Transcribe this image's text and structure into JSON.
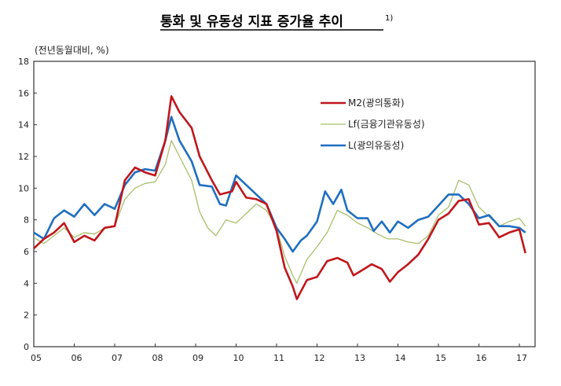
{
  "chart_data": {
    "type": "line",
    "title": "통화 및 유동성 지표 증가율 추이",
    "title_footnote": "1)",
    "ylabel": "(전년동월대비, %)",
    "xlabel": "",
    "xlim": [
      2005,
      2017.3
    ],
    "ylim": [
      0,
      18
    ],
    "yticks": [
      0,
      2,
      4,
      6,
      8,
      10,
      12,
      14,
      16,
      18
    ],
    "xtick_labels": [
      "05",
      "06",
      "07",
      "08",
      "09",
      "10",
      "11",
      "12",
      "13",
      "14",
      "15",
      "16",
      "17"
    ],
    "grid": false,
    "legend_placement": "top-right",
    "series": [
      {
        "name": "M2(광의통화)",
        "color": "#c0161c",
        "x": [
          2005,
          2005.25,
          2005.5,
          2005.75,
          2006,
          2006.25,
          2006.5,
          2006.75,
          2007,
          2007.25,
          2007.5,
          2007.75,
          2008,
          2008.25,
          2008.4,
          2008.6,
          2008.9,
          2009.1,
          2009.4,
          2009.6,
          2009.9,
          2010,
          2010.25,
          2010.5,
          2010.75,
          2011,
          2011.2,
          2011.4,
          2011.5,
          2011.75,
          2012,
          2012.25,
          2012.5,
          2012.75,
          2012.9,
          2013.1,
          2013.35,
          2013.6,
          2013.8,
          2014,
          2014.25,
          2014.5,
          2014.75,
          2015,
          2015.25,
          2015.5,
          2015.75,
          2016,
          2016.25,
          2016.5,
          2016.75,
          2017,
          2017.15
        ],
        "y": [
          6.2,
          6.8,
          7.2,
          7.8,
          6.6,
          7.0,
          6.7,
          7.5,
          7.6,
          10.5,
          11.3,
          11.0,
          10.8,
          13.0,
          15.8,
          14.8,
          13.8,
          12.0,
          10.5,
          9.6,
          9.8,
          10.4,
          9.4,
          9.3,
          9.0,
          7.3,
          5.0,
          3.8,
          3.0,
          4.2,
          4.4,
          5.4,
          5.6,
          5.3,
          4.5,
          4.8,
          5.2,
          4.9,
          4.1,
          4.7,
          5.2,
          5.8,
          6.8,
          8.0,
          8.4,
          9.2,
          9.3,
          7.7,
          7.8,
          6.9,
          7.2,
          7.4,
          5.9
        ]
      },
      {
        "name": "Lf(금융기관유동성)",
        "color": "#a8bf6a",
        "x": [
          2005,
          2005.25,
          2005.5,
          2005.75,
          2006,
          2006.25,
          2006.5,
          2006.75,
          2007,
          2007.25,
          2007.5,
          2007.75,
          2008,
          2008.25,
          2008.4,
          2008.6,
          2008.9,
          2009.1,
          2009.3,
          2009.5,
          2009.75,
          2010,
          2010.25,
          2010.5,
          2010.75,
          2011,
          2011.2,
          2011.4,
          2011.5,
          2011.75,
          2012,
          2012.25,
          2012.5,
          2012.75,
          2013,
          2013.25,
          2013.5,
          2013.75,
          2014,
          2014.25,
          2014.5,
          2014.75,
          2015,
          2015.25,
          2015.5,
          2015.75,
          2016,
          2016.25,
          2016.5,
          2016.75,
          2017,
          2017.15
        ],
        "y": [
          6.9,
          6.5,
          7.0,
          7.5,
          6.9,
          7.2,
          7.1,
          7.5,
          7.6,
          9.3,
          10.0,
          10.3,
          10.4,
          11.5,
          13.0,
          12.0,
          10.5,
          8.5,
          7.5,
          7.0,
          8.0,
          7.8,
          8.4,
          9.0,
          8.6,
          7.5,
          5.7,
          4.5,
          4.0,
          5.5,
          6.3,
          7.2,
          8.6,
          8.3,
          7.8,
          7.5,
          7.1,
          6.8,
          6.8,
          6.6,
          6.5,
          7.0,
          8.3,
          8.8,
          10.5,
          10.2,
          8.8,
          8.2,
          7.6,
          7.9,
          8.1,
          7.6
        ]
      },
      {
        "name": "L(광의유동성)",
        "color": "#1f6fc0",
        "x": [
          2005,
          2005.25,
          2005.5,
          2005.75,
          2006,
          2006.25,
          2006.5,
          2006.75,
          2007,
          2007.25,
          2007.5,
          2007.75,
          2008,
          2008.25,
          2008.4,
          2008.6,
          2008.9,
          2009.1,
          2009.4,
          2009.6,
          2009.75,
          2010,
          2010.25,
          2010.5,
          2010.75,
          2011,
          2011.2,
          2011.4,
          2011.6,
          2011.75,
          2012,
          2012.2,
          2012.4,
          2012.6,
          2012.75,
          2013,
          2013.25,
          2013.4,
          2013.6,
          2013.8,
          2014,
          2014.25,
          2014.5,
          2014.75,
          2015,
          2015.25,
          2015.5,
          2015.75,
          2016,
          2016.25,
          2016.5,
          2016.75,
          2017,
          2017.15
        ],
        "y": [
          7.2,
          6.8,
          8.1,
          8.6,
          8.2,
          9.0,
          8.3,
          9.0,
          8.7,
          10.2,
          11.0,
          11.2,
          11.1,
          13.0,
          14.5,
          13.0,
          11.7,
          10.2,
          10.1,
          9.0,
          8.9,
          10.8,
          10.2,
          9.6,
          9.0,
          7.5,
          6.8,
          6.0,
          6.7,
          7.0,
          7.9,
          9.8,
          9.0,
          9.9,
          8.6,
          8.1,
          8.1,
          7.3,
          7.9,
          7.2,
          7.9,
          7.5,
          8.0,
          8.2,
          8.9,
          9.6,
          9.6,
          9.0,
          8.1,
          8.3,
          7.6,
          7.6,
          7.5,
          7.2
        ]
      }
    ]
  }
}
